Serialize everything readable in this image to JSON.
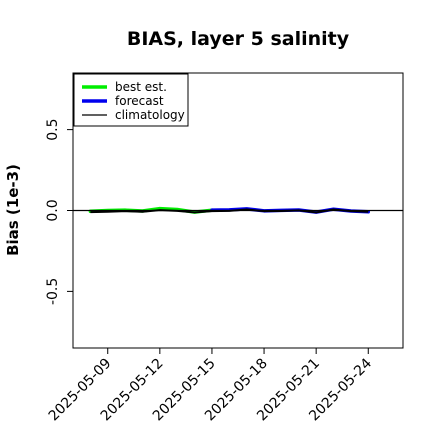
{
  "chart_data": {
    "type": "line",
    "title": "BIAS, layer 5 salinity",
    "ylabel": "Bias (1e-3)",
    "xlabel": "",
    "ylim": [
      -0.85,
      0.85
    ],
    "xlim": [
      "2025-05-07",
      "2025-05-26"
    ],
    "yticks": [
      -0.5,
      0.0,
      0.5
    ],
    "ytick_labels": [
      "-0.5",
      "0.0",
      "0.5"
    ],
    "xtick_labels": [
      "2025-05-09",
      "2025-05-12",
      "2025-05-15",
      "2025-05-18",
      "2025-05-21",
      "2025-05-24"
    ],
    "highlighted_xtick": "2025-05-15",
    "highlight_color": "#2e8b2e",
    "grid": false,
    "legend_position": "upper-left",
    "series": [
      {
        "name": "best est.",
        "color": "#00ee00",
        "x": [
          "2025-05-08",
          "2025-05-09",
          "2025-05-10",
          "2025-05-11",
          "2025-05-12",
          "2025-05-13",
          "2025-05-14",
          "2025-05-15"
        ],
        "values": [
          -0.005,
          0.0,
          0.002,
          -0.003,
          0.012,
          0.006,
          -0.01,
          0.002
        ]
      },
      {
        "name": "forecast",
        "color": "#0000ee",
        "x": [
          "2025-05-15",
          "2025-05-16",
          "2025-05-17",
          "2025-05-18",
          "2025-05-19",
          "2025-05-20",
          "2025-05-21",
          "2025-05-22",
          "2025-05-23",
          "2025-05-24"
        ],
        "values": [
          0.002,
          0.004,
          0.01,
          -0.002,
          0.001,
          0.003,
          -0.01,
          0.008,
          -0.003,
          -0.008
        ]
      },
      {
        "name": "climatology",
        "color": "#000000",
        "x": [
          "2025-05-07",
          "2025-05-26"
        ],
        "values": [
          0.0,
          0.0
        ]
      }
    ],
    "overlay_series_color": "#000000",
    "overlay_series_values": [
      -0.01,
      -0.008,
      -0.004,
      -0.008,
      0.002,
      -0.002,
      -0.012,
      -0.004,
      -0.002,
      0.006,
      -0.004,
      -0.003,
      0.001,
      -0.012,
      0.006,
      -0.004,
      -0.008
    ]
  }
}
